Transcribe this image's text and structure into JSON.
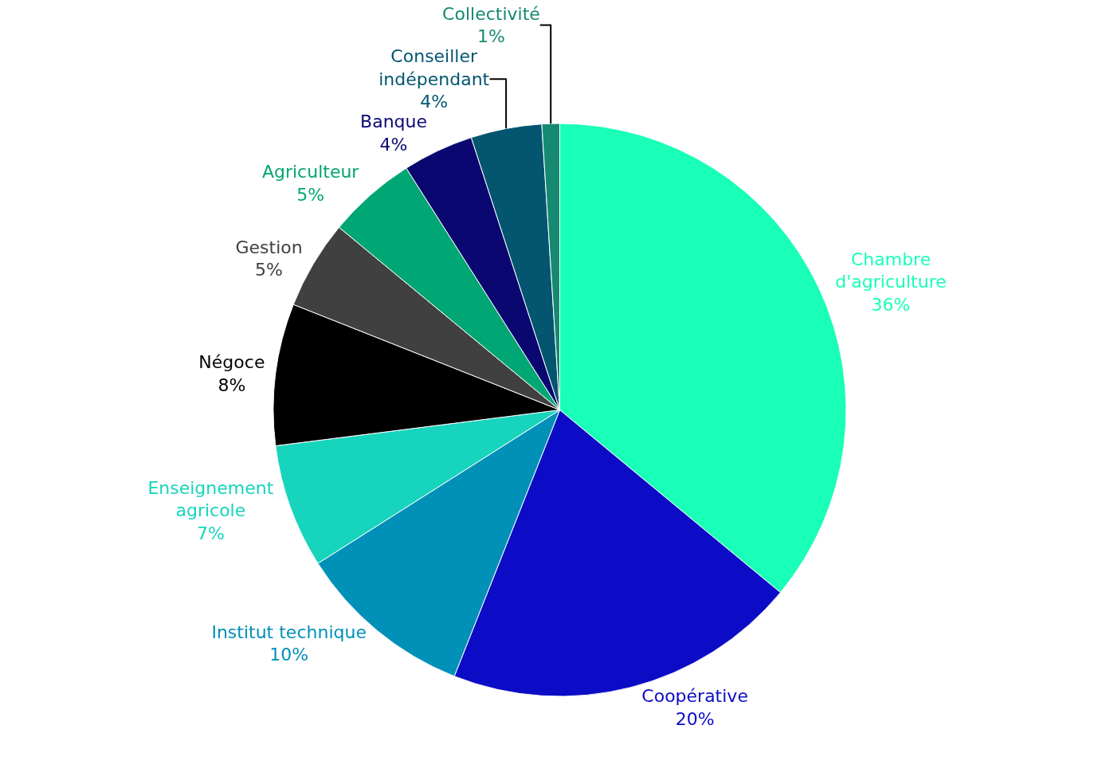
{
  "chart_data": {
    "type": "pie",
    "categories": [
      "Chambre\nd'agriculture",
      "Coopérative",
      "Institut technique",
      "Enseignement\nagricole",
      "Négoce",
      "Gestion",
      "Agriculteur",
      "Banque",
      "Conseiller\nindépendant",
      "Collectivité"
    ],
    "values": [
      36,
      20,
      10,
      7,
      8,
      5,
      5,
      4,
      4,
      1
    ],
    "value_labels": [
      "36%",
      "20%",
      "10%",
      "7%",
      "8%",
      "5%",
      "5%",
      "4%",
      "4%",
      "1%"
    ],
    "colors": [
      "#1affb8",
      "#0c0cc6",
      "#0090b8",
      "#17d4bc",
      "#000000",
      "#404040",
      "#00a673",
      "#0a0870",
      "#035570",
      "#158a70"
    ],
    "legend": false
  }
}
